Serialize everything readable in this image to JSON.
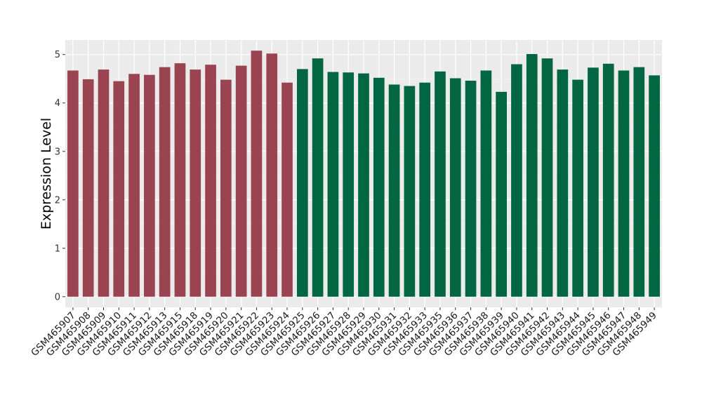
{
  "chart_data": {
    "type": "bar",
    "title": "",
    "xlabel": "",
    "ylabel": "Expression Level",
    "ylim": [
      -0.22,
      5.3
    ],
    "yticks": [
      0,
      1,
      2,
      3,
      4,
      5
    ],
    "grid": true,
    "legend": "none",
    "colors": {
      "group1": "#9b4451",
      "group2": "#036642",
      "panel": "#ebebeb",
      "grid": "#ffffff"
    },
    "categories": [
      "GSM465907",
      "GSM465908",
      "GSM465909",
      "GSM465910",
      "GSM465911",
      "GSM465912",
      "GSM465913",
      "GSM465915",
      "GSM465918",
      "GSM465919",
      "GSM465920",
      "GSM465921",
      "GSM465922",
      "GSM465923",
      "GSM465924",
      "GSM465925",
      "GSM465926",
      "GSM465927",
      "GSM465928",
      "GSM465929",
      "GSM465930",
      "GSM465931",
      "GSM465932",
      "GSM465933",
      "GSM465935",
      "GSM465936",
      "GSM465937",
      "GSM465938",
      "GSM465939",
      "GSM465940",
      "GSM465941",
      "GSM465942",
      "GSM465943",
      "GSM465944",
      "GSM465945",
      "GSM465946",
      "GSM465947",
      "GSM465948",
      "GSM465949"
    ],
    "values": [
      4.67,
      4.49,
      4.69,
      4.45,
      4.6,
      4.58,
      4.74,
      4.82,
      4.69,
      4.79,
      4.48,
      4.77,
      5.08,
      5.02,
      4.42,
      4.7,
      4.92,
      4.64,
      4.63,
      4.61,
      4.52,
      4.38,
      4.35,
      4.42,
      4.65,
      4.51,
      4.46,
      4.67,
      4.23,
      4.8,
      5.01,
      4.92,
      4.69,
      4.48,
      4.73,
      4.81,
      4.67,
      4.74,
      4.57
    ],
    "groups": [
      1,
      1,
      1,
      1,
      1,
      1,
      1,
      1,
      1,
      1,
      1,
      1,
      1,
      1,
      1,
      2,
      2,
      2,
      2,
      2,
      2,
      2,
      2,
      2,
      2,
      2,
      2,
      2,
      2,
      2,
      2,
      2,
      2,
      2,
      2,
      2,
      2,
      2,
      2
    ]
  }
}
